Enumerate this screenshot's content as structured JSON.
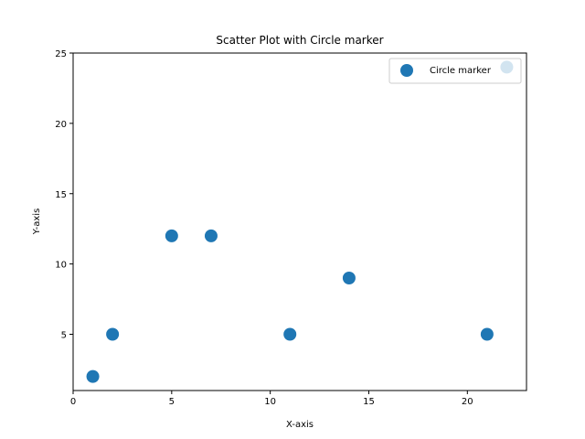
{
  "chart_data": {
    "type": "scatter",
    "title": "Scatter Plot with Circle marker",
    "xlabel": "X-axis",
    "ylabel": "Y-axis",
    "xlim": [
      0,
      23
    ],
    "ylim": [
      1,
      25
    ],
    "xticks": [
      0,
      5,
      10,
      15,
      20
    ],
    "yticks": [
      5,
      10,
      15,
      20,
      25
    ],
    "grid": false,
    "legend_position": "top-right",
    "series": [
      {
        "name": "Circle marker",
        "marker": "circle",
        "color": "#1f77b4",
        "x": [
          1,
          2,
          5,
          7,
          11,
          14,
          21,
          22
        ],
        "y": [
          2,
          5,
          12,
          12,
          5,
          9,
          5,
          24
        ]
      }
    ]
  }
}
